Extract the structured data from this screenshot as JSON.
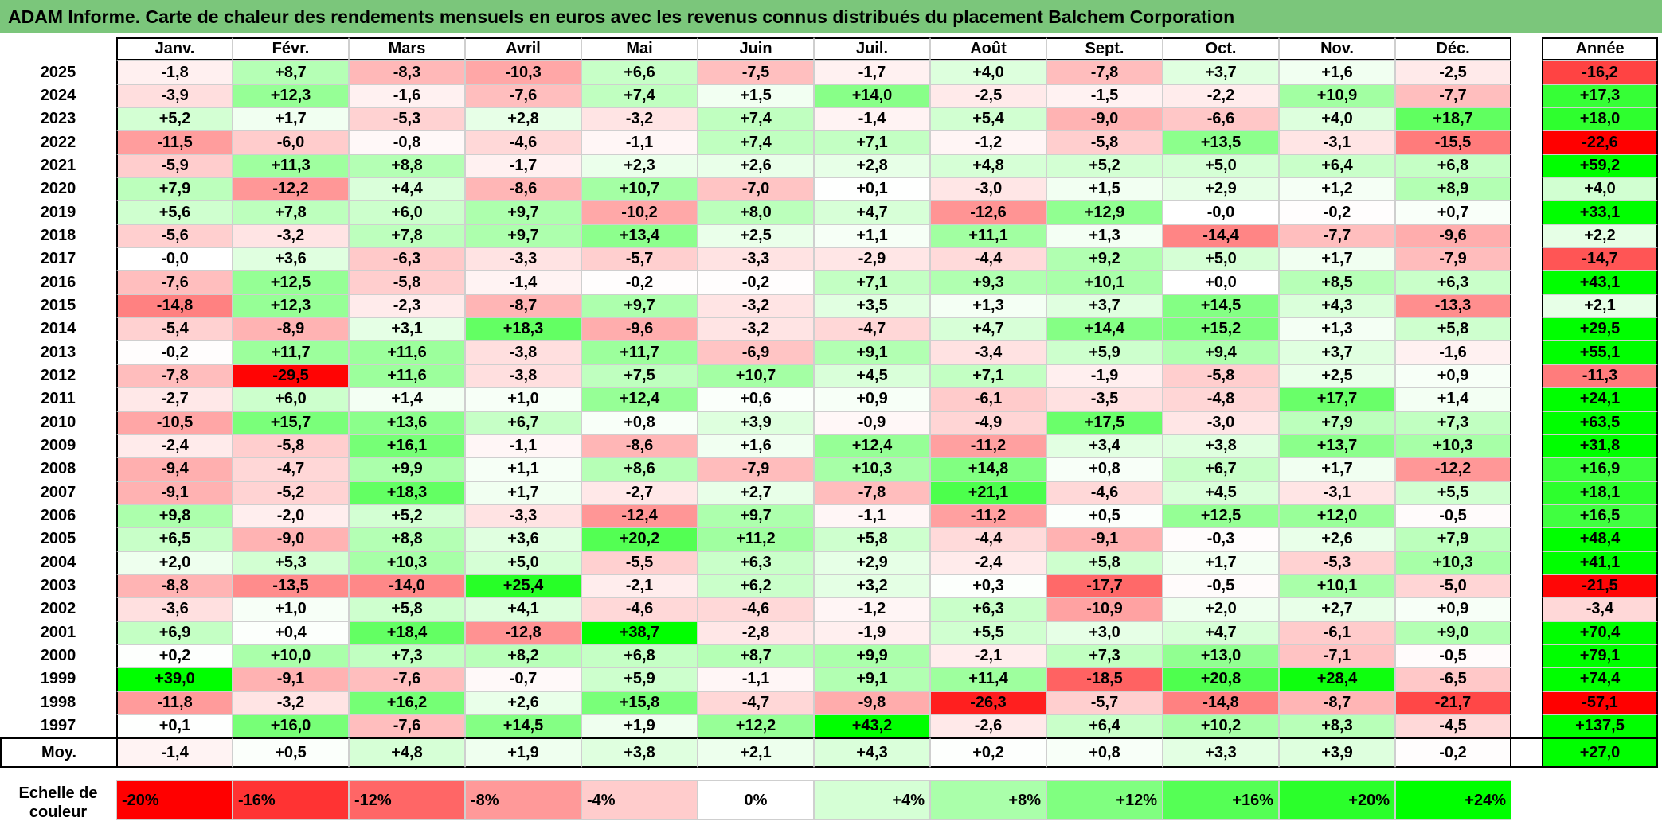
{
  "title": "ADAM Informe. Carte de chaleur des rendements mensuels en euros avec les revenus connus distribués du placement Balchem Corporation",
  "chart_data": {
    "type": "heatmap",
    "columns": [
      "Janv.",
      "Févr.",
      "Mars",
      "Avril",
      "Mai",
      "Juin",
      "Juil.",
      "Août",
      "Sept.",
      "Oct.",
      "Nov.",
      "Déc."
    ],
    "annual_header": "Année",
    "rows": [
      {
        "year": "2025",
        "values": [
          "-1,8",
          "+8,7",
          "-8,3",
          "-10,3",
          "+6,6",
          "-7,5",
          "-1,7",
          "+4,0",
          "-7,8",
          "+3,7",
          "+1,6",
          "-2,5"
        ],
        "annual": "-16,2"
      },
      {
        "year": "2024",
        "values": [
          "-3,9",
          "+12,3",
          "-1,6",
          "-7,6",
          "+7,4",
          "+1,5",
          "+14,0",
          "-2,5",
          "-1,5",
          "-2,2",
          "+10,9",
          "-7,7"
        ],
        "annual": "+17,3"
      },
      {
        "year": "2023",
        "values": [
          "+5,2",
          "+1,7",
          "-5,3",
          "+2,8",
          "-3,2",
          "+7,4",
          "-1,4",
          "+5,4",
          "-9,0",
          "-6,6",
          "+4,0",
          "+18,7"
        ],
        "annual": "+18,0"
      },
      {
        "year": "2022",
        "values": [
          "-11,5",
          "-6,0",
          "-0,8",
          "-4,6",
          "-1,1",
          "+7,4",
          "+7,1",
          "-1,2",
          "-5,8",
          "+13,5",
          "-3,1",
          "-15,5"
        ],
        "annual": "-22,6"
      },
      {
        "year": "2021",
        "values": [
          "-5,9",
          "+11,3",
          "+8,8",
          "-1,7",
          "+2,3",
          "+2,6",
          "+2,8",
          "+4,8",
          "+5,2",
          "+5,0",
          "+6,4",
          "+6,8"
        ],
        "annual": "+59,2"
      },
      {
        "year": "2020",
        "values": [
          "+7,9",
          "-12,2",
          "+4,4",
          "-8,6",
          "+10,7",
          "-7,0",
          "+0,1",
          "-3,0",
          "+1,5",
          "+2,9",
          "+1,2",
          "+8,9"
        ],
        "annual": "+4,0"
      },
      {
        "year": "2019",
        "values": [
          "+5,6",
          "+7,8",
          "+6,0",
          "+9,7",
          "-10,2",
          "+8,0",
          "+4,7",
          "-12,6",
          "+12,9",
          "-0,0",
          "-0,2",
          "+0,7"
        ],
        "annual": "+33,1"
      },
      {
        "year": "2018",
        "values": [
          "-5,6",
          "-3,2",
          "+7,8",
          "+9,7",
          "+13,4",
          "+2,5",
          "+1,1",
          "+11,1",
          "+1,3",
          "-14,4",
          "-7,7",
          "-9,6"
        ],
        "annual": "+2,2"
      },
      {
        "year": "2017",
        "values": [
          "-0,0",
          "+3,6",
          "-6,3",
          "-3,3",
          "-5,7",
          "-3,3",
          "-2,9",
          "-4,4",
          "+9,2",
          "+5,0",
          "+1,7",
          "-7,9"
        ],
        "annual": "-14,7"
      },
      {
        "year": "2016",
        "values": [
          "-7,6",
          "+12,5",
          "-5,8",
          "-1,4",
          "-0,2",
          "-0,2",
          "+7,1",
          "+9,3",
          "+10,1",
          "+0,0",
          "+8,5",
          "+6,3"
        ],
        "annual": "+43,1"
      },
      {
        "year": "2015",
        "values": [
          "-14,8",
          "+12,3",
          "-2,3",
          "-8,7",
          "+9,7",
          "-3,2",
          "+3,5",
          "+1,3",
          "+3,7",
          "+14,5",
          "+4,3",
          "-13,3"
        ],
        "annual": "+2,1"
      },
      {
        "year": "2014",
        "values": [
          "-5,4",
          "-8,9",
          "+3,1",
          "+18,3",
          "-9,6",
          "-3,2",
          "-4,7",
          "+4,7",
          "+14,4",
          "+15,2",
          "+1,3",
          "+5,8"
        ],
        "annual": "+29,5"
      },
      {
        "year": "2013",
        "values": [
          "-0,2",
          "+11,7",
          "+11,6",
          "-3,8",
          "+11,7",
          "-6,9",
          "+9,1",
          "-3,4",
          "+5,9",
          "+9,4",
          "+3,7",
          "-1,6"
        ],
        "annual": "+55,1"
      },
      {
        "year": "2012",
        "values": [
          "-7,8",
          "-29,5",
          "+11,6",
          "-3,8",
          "+7,5",
          "+10,7",
          "+4,5",
          "+7,1",
          "-1,9",
          "-5,8",
          "+2,5",
          "+0,9"
        ],
        "annual": "-11,3"
      },
      {
        "year": "2011",
        "values": [
          "-2,7",
          "+6,0",
          "+1,4",
          "+1,0",
          "+12,4",
          "+0,6",
          "+0,9",
          "-6,1",
          "-3,5",
          "-4,8",
          "+17,7",
          "+1,4"
        ],
        "annual": "+24,1"
      },
      {
        "year": "2010",
        "values": [
          "-10,5",
          "+15,7",
          "+13,6",
          "+6,7",
          "+0,8",
          "+3,9",
          "-0,9",
          "-4,9",
          "+17,5",
          "-3,0",
          "+7,9",
          "+7,3"
        ],
        "annual": "+63,5"
      },
      {
        "year": "2009",
        "values": [
          "-2,4",
          "-5,8",
          "+16,1",
          "-1,1",
          "-8,6",
          "+1,6",
          "+12,4",
          "-11,2",
          "+3,4",
          "+3,8",
          "+13,7",
          "+10,3"
        ],
        "annual": "+31,8"
      },
      {
        "year": "2008",
        "values": [
          "-9,4",
          "-4,7",
          "+9,9",
          "+1,1",
          "+8,6",
          "-7,9",
          "+10,3",
          "+14,8",
          "+0,8",
          "+6,7",
          "+1,7",
          "-12,2"
        ],
        "annual": "+16,9"
      },
      {
        "year": "2007",
        "values": [
          "-9,1",
          "-5,2",
          "+18,3",
          "+1,7",
          "-2,7",
          "+2,7",
          "-7,8",
          "+21,1",
          "-4,6",
          "+4,5",
          "-3,1",
          "+5,5"
        ],
        "annual": "+18,1"
      },
      {
        "year": "2006",
        "values": [
          "+9,8",
          "-2,0",
          "+5,2",
          "-3,3",
          "-12,4",
          "+9,7",
          "-1,1",
          "-11,2",
          "+0,5",
          "+12,5",
          "+12,0",
          "-0,5"
        ],
        "annual": "+16,5"
      },
      {
        "year": "2005",
        "values": [
          "+6,5",
          "-9,0",
          "+8,8",
          "+3,6",
          "+20,2",
          "+11,2",
          "+5,8",
          "-4,4",
          "-9,1",
          "-0,3",
          "+2,6",
          "+7,9"
        ],
        "annual": "+48,4"
      },
      {
        "year": "2004",
        "values": [
          "+2,0",
          "+5,3",
          "+10,3",
          "+5,0",
          "-5,5",
          "+6,3",
          "+2,9",
          "-2,4",
          "+5,8",
          "+1,7",
          "-5,3",
          "+10,3"
        ],
        "annual": "+41,1"
      },
      {
        "year": "2003",
        "values": [
          "-8,8",
          "-13,5",
          "-14,0",
          "+25,4",
          "-2,1",
          "+6,2",
          "+3,2",
          "+0,3",
          "-17,7",
          "-0,5",
          "+10,1",
          "-5,0"
        ],
        "annual": "-21,5"
      },
      {
        "year": "2002",
        "values": [
          "-3,6",
          "+1,0",
          "+5,8",
          "+4,1",
          "-4,6",
          "-4,6",
          "-1,2",
          "+6,3",
          "-10,9",
          "+2,0",
          "+2,7",
          "+0,9"
        ],
        "annual": "-3,4"
      },
      {
        "year": "2001",
        "values": [
          "+6,9",
          "+0,4",
          "+18,4",
          "-12,8",
          "+38,7",
          "-2,8",
          "-1,9",
          "+5,5",
          "+3,0",
          "+4,7",
          "-6,1",
          "+9,0"
        ],
        "annual": "+70,4"
      },
      {
        "year": "2000",
        "values": [
          "+0,2",
          "+10,0",
          "+7,3",
          "+8,2",
          "+6,8",
          "+8,7",
          "+9,9",
          "-2,1",
          "+7,3",
          "+13,0",
          "-7,1",
          "-0,5"
        ],
        "annual": "+79,1"
      },
      {
        "year": "1999",
        "values": [
          "+39,0",
          "-9,1",
          "-7,6",
          "-0,7",
          "+5,9",
          "-1,1",
          "+9,1",
          "+11,4",
          "-18,5",
          "+20,8",
          "+28,4",
          "-6,5"
        ],
        "annual": "+74,4"
      },
      {
        "year": "1998",
        "values": [
          "-11,8",
          "-3,2",
          "+16,2",
          "+2,6",
          "+15,8",
          "-4,7",
          "-9,8",
          "-26,3",
          "-5,7",
          "-14,8",
          "-8,7",
          "-21,7"
        ],
        "annual": "-57,1"
      },
      {
        "year": "1997",
        "values": [
          "+0,1",
          "+16,0",
          "-7,6",
          "+14,5",
          "+1,9",
          "+12,2",
          "+43,2",
          "-2,6",
          "+6,4",
          "+10,2",
          "+8,3",
          "-4,5"
        ],
        "annual": "+137,5"
      }
    ],
    "average": {
      "label": "Moy.",
      "values": [
        "-1,4",
        "+0,5",
        "+4,8",
        "+1,9",
        "+3,8",
        "+2,1",
        "+4,3",
        "+0,2",
        "+0,8",
        "+3,3",
        "+3,9",
        "-0,2"
      ],
      "annual": "+27,0"
    },
    "scale": {
      "label": "Echelle de couleur",
      "steps": [
        "-20%",
        "-16%",
        "-12%",
        "-8%",
        "-4%",
        "0%",
        "+4%",
        "+8%",
        "+12%",
        "+16%",
        "+20%",
        "+24%"
      ]
    },
    "colors": {
      "negative_max": "#ff0000",
      "neutral": "#ffffff",
      "positive_max": "#00ff00",
      "title_bar": "#7bc67b"
    }
  }
}
